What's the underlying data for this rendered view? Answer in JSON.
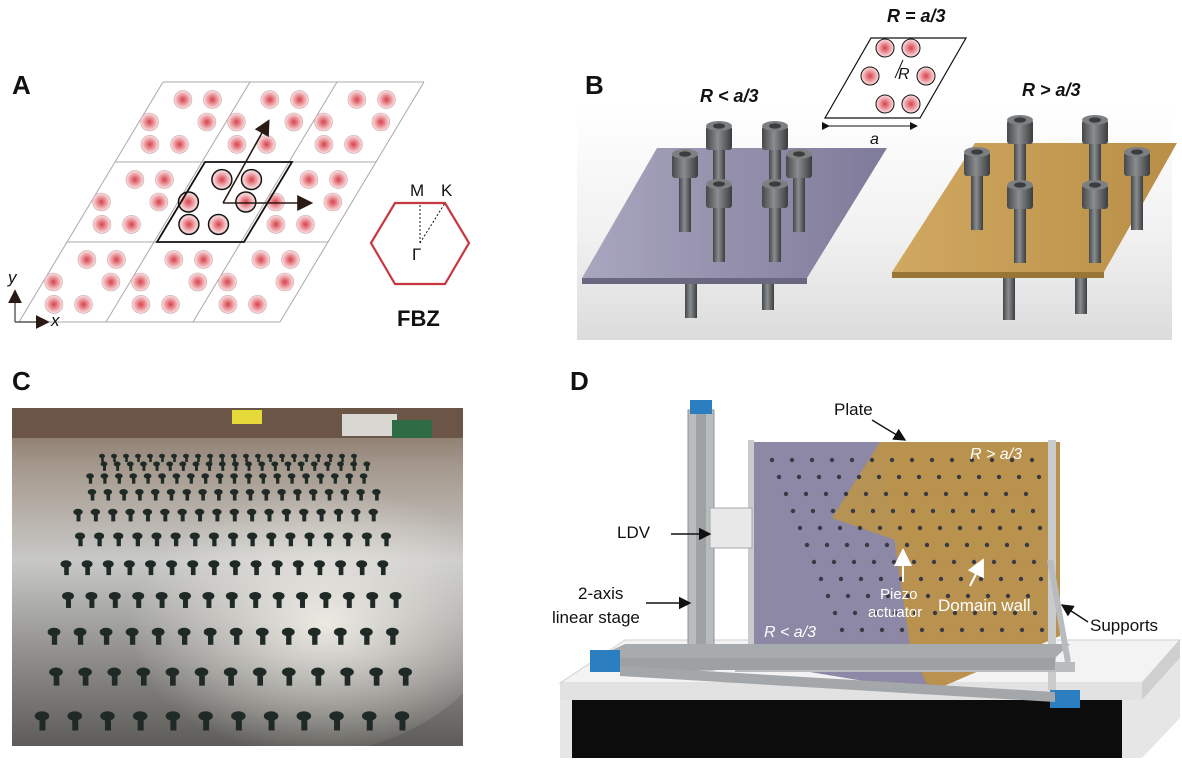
{
  "panels": {
    "a": {
      "letter": "A",
      "axis_y": "y",
      "axis_x": "x",
      "fbz_label": "FBZ",
      "point_m": "M",
      "point_k": "K",
      "point_gamma": "Γ",
      "colors": {
        "hexagon": "#c8373f",
        "dot": "#d8404b",
        "lattice_line": "#9a9a9a"
      }
    },
    "b": {
      "letter": "B",
      "title_equal": "R = a/3",
      "title_less": "R < a/3",
      "title_greater": "R > a/3",
      "inset_r": "R",
      "inset_a": "a",
      "colors": {
        "plate_less": "#8e8aa8",
        "plate_greater": "#c9a05a",
        "bolt": "#6b6e70"
      }
    },
    "c": {
      "letter": "C",
      "description_free": ""
    },
    "d": {
      "letter": "D",
      "plate": "Plate",
      "ldv": "LDV",
      "stage_line1": "2-axis",
      "stage_line2": "linear stage",
      "region_greater": "R > a/3",
      "region_less": "R < a/3",
      "piezo_line1": "Piezo",
      "piezo_line2": "actuator",
      "domain_wall": "Domain wall",
      "supports": "Supports",
      "colors": {
        "purple": "#8d88a6",
        "gold": "#b8924e",
        "frame": "#b9bcbf",
        "blue": "#2b7fc0"
      }
    }
  }
}
